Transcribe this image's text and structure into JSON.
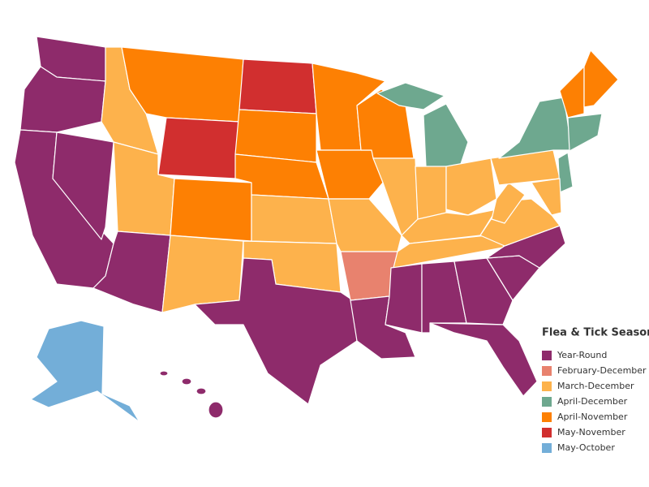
{
  "legend": {
    "title": "Flea & Tick Season",
    "items": [
      {
        "label": "Year-Round",
        "color": "#8e2b6b"
      },
      {
        "label": "February-December",
        "color": "#e8826e"
      },
      {
        "label": "March-December",
        "color": "#fdb24c"
      },
      {
        "label": "April-December",
        "color": "#6ea88f"
      },
      {
        "label": "April-November",
        "color": "#fd8003"
      },
      {
        "label": "May-November",
        "color": "#d12f2f"
      },
      {
        "label": "May-October",
        "color": "#73aed8"
      }
    ]
  }
}
